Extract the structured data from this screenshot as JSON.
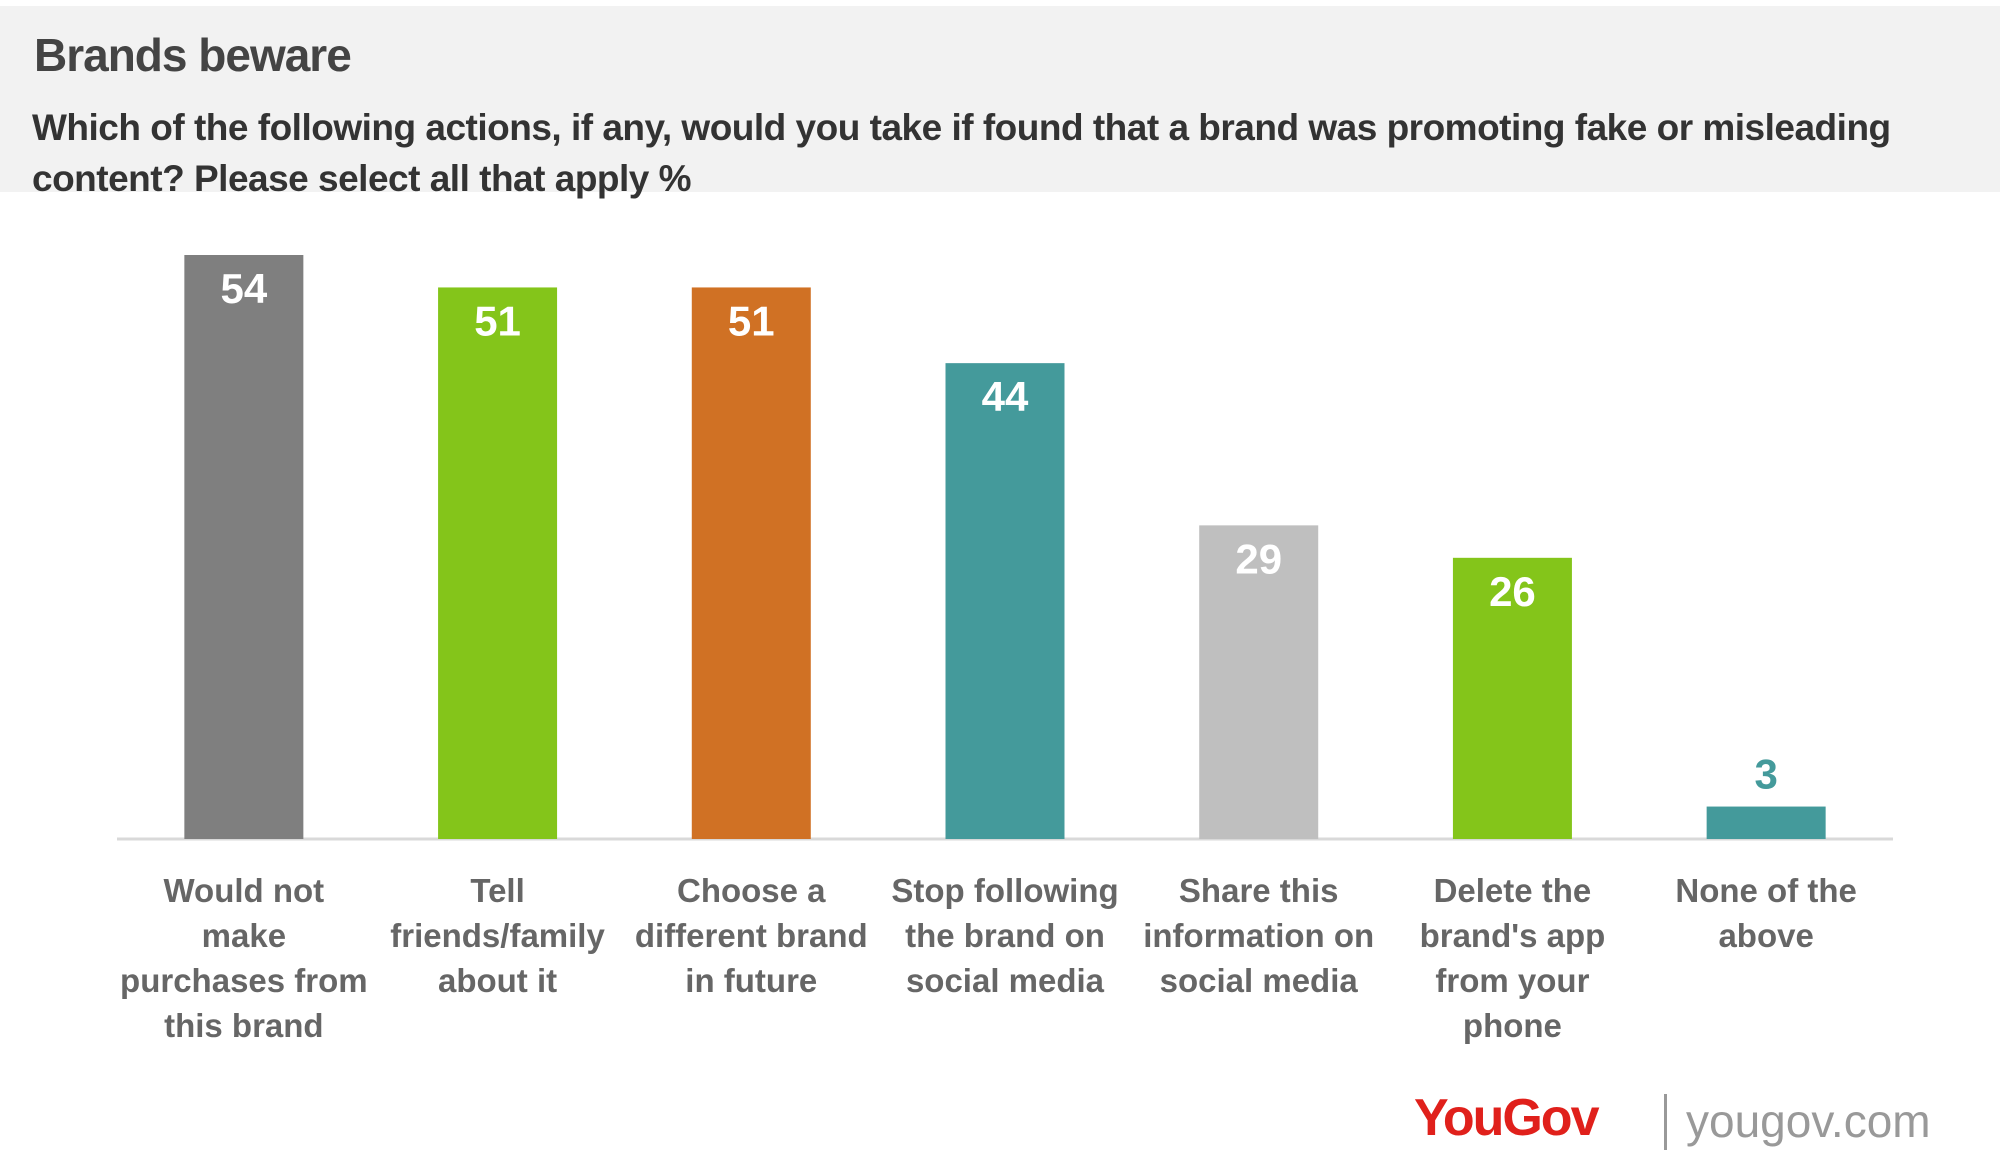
{
  "chart_data": {
    "type": "bar",
    "title": "Brands beware",
    "subtitle": "Which of the following actions, if any, would you take if found that a brand was promoting fake or misleading content? Please select all that apply %",
    "categories": [
      "Would not make purchases from this brand",
      "Tell friends/family about it",
      "Choose a different brand in future",
      "Stop following the brand on social media",
      "Share this information on social media",
      "Delete the brand's app from your phone",
      "None of the above"
    ],
    "values": [
      54,
      51,
      51,
      44,
      29,
      26,
      3
    ],
    "colors": [
      "#7f7f7f",
      "#84c51a",
      "#d07124",
      "#449a9b",
      "#bfbfbf",
      "#84c51a",
      "#449a9b"
    ],
    "logo": "YouGov",
    "site": "yougov.com"
  }
}
